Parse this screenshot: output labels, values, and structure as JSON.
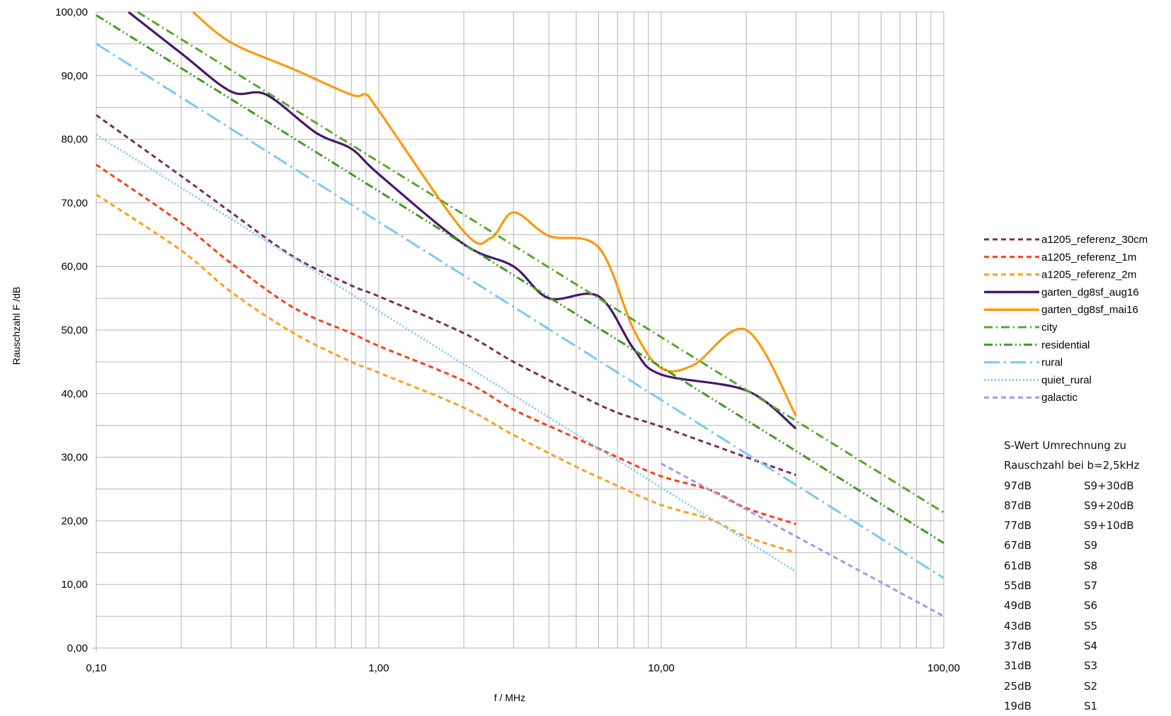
{
  "chart_data": {
    "type": "line",
    "xlabel": "f / MHz",
    "ylabel": "Rauschzahl F /dB",
    "x_scale": "log",
    "xlim": [
      0.1,
      100
    ],
    "ylim": [
      0,
      100
    ],
    "grid": true,
    "legend_placement": "right",
    "x_ticks": [
      {
        "value": 0.1,
        "label": "0,10"
      },
      {
        "value": 1,
        "label": "1,00"
      },
      {
        "value": 10,
        "label": "10,00"
      },
      {
        "value": 100,
        "label": "100,00"
      }
    ],
    "y_ticks": [
      {
        "value": 0,
        "label": "0,00"
      },
      {
        "value": 10,
        "label": "10,00"
      },
      {
        "value": 20,
        "label": "20,00"
      },
      {
        "value": 30,
        "label": "30,00"
      },
      {
        "value": 40,
        "label": "40,00"
      },
      {
        "value": 50,
        "label": "50,00"
      },
      {
        "value": 60,
        "label": "60,00"
      },
      {
        "value": 70,
        "label": "70,00"
      },
      {
        "value": 80,
        "label": "80,00"
      },
      {
        "value": 90,
        "label": "90,00"
      },
      {
        "value": 100,
        "label": "100,00"
      }
    ],
    "series": [
      {
        "name": "a1205_referenz_30cm",
        "color": "#7b2c5e",
        "dash": "dash",
        "x": [
          0.1,
          0.2,
          0.3,
          0.5,
          0.8,
          1,
          2,
          3,
          5,
          7,
          10,
          20,
          30
        ],
        "y": [
          83.8,
          74.2,
          68.5,
          61.5,
          57,
          55.3,
          49.5,
          45,
          40,
          37,
          34.8,
          30,
          27.2
        ]
      },
      {
        "name": "a1205_referenz_1m",
        "color": "#ff3b14",
        "dash": "dash",
        "x": [
          0.1,
          0.2,
          0.3,
          0.5,
          0.8,
          1,
          2,
          3,
          5,
          7,
          10,
          15,
          20,
          30
        ],
        "y": [
          76,
          66.8,
          60.5,
          53.5,
          49.5,
          47.5,
          42,
          37.5,
          33,
          30,
          27,
          24.8,
          22,
          19.5
        ]
      },
      {
        "name": "a1205_referenz_2m",
        "color": "#ff9e1b",
        "dash": "dash",
        "x": [
          0.1,
          0.2,
          0.3,
          0.5,
          0.8,
          1,
          2,
          3,
          5,
          7,
          10,
          15,
          20,
          30
        ],
        "y": [
          71.3,
          62.5,
          56,
          49.5,
          45,
          43.3,
          37.8,
          33.5,
          28.5,
          25.5,
          22.5,
          20.2,
          17.5,
          15
        ]
      },
      {
        "name": "garten_dg8sf_aug16",
        "color": "#46176c",
        "dash": "solid",
        "x": [
          0.13,
          0.2,
          0.3,
          0.4,
          0.6,
          0.8,
          1,
          2,
          3,
          4,
          6,
          8,
          10,
          20,
          30
        ],
        "y": [
          100,
          93.5,
          87.5,
          87,
          81,
          78.5,
          74.5,
          63.5,
          60,
          55,
          55.3,
          47,
          43,
          40.5,
          34.5
        ]
      },
      {
        "name": "garten_dg8sf_mai16",
        "color": "#ff980e",
        "dash": "solid",
        "x": [
          0.22,
          0.3,
          0.5,
          0.8,
          0.9,
          1,
          2,
          2.5,
          3,
          4,
          6,
          8,
          10,
          13,
          20,
          30
        ],
        "y": [
          100,
          95.2,
          91,
          87,
          87,
          84.5,
          65.5,
          64.5,
          68.5,
          64.8,
          63,
          50,
          44,
          44.5,
          50,
          36.5
        ]
      },
      {
        "name": "city",
        "color": "#58a629",
        "dash": "dashdot",
        "x": [
          0.14,
          100
        ],
        "y": [
          100,
          21.3
        ]
      },
      {
        "name": "residential",
        "color": "#3d9b21",
        "dash": "dashdotdot",
        "x": [
          0.1,
          100
        ],
        "y": [
          99.5,
          16.5
        ]
      },
      {
        "name": "rural",
        "color": "#7cc8f2",
        "dash": "longdashdot",
        "x": [
          0.1,
          100
        ],
        "y": [
          95,
          11
        ]
      },
      {
        "name": "quiet_rural",
        "color": "#7cc8f2",
        "dash": "dot",
        "x": [
          0.1,
          30
        ],
        "y": [
          80.7,
          12
        ]
      },
      {
        "name": "galactic",
        "color": "#9e9af2",
        "dash": "dash",
        "x": [
          10,
          100
        ],
        "y": [
          29,
          5
        ]
      }
    ]
  },
  "table": {
    "title_line1": "S-Wert Umrechnung zu",
    "title_line2": "Rauschzahl bei b=2,5kHz",
    "rows": [
      {
        "db": "97dB",
        "s": "S9+30dB"
      },
      {
        "db": "87dB",
        "s": "S9+20dB"
      },
      {
        "db": "77dB",
        "s": "S9+10dB"
      },
      {
        "db": "67dB",
        "s": "S9"
      },
      {
        "db": "61dB",
        "s": "S8"
      },
      {
        "db": "55dB",
        "s": "S7"
      },
      {
        "db": "49dB",
        "s": "S6"
      },
      {
        "db": "43dB",
        "s": "S5"
      },
      {
        "db": "37dB",
        "s": "S4"
      },
      {
        "db": "31dB",
        "s": "S3"
      },
      {
        "db": "25dB",
        "s": "S2"
      },
      {
        "db": "19dB",
        "s": "S1"
      }
    ]
  }
}
